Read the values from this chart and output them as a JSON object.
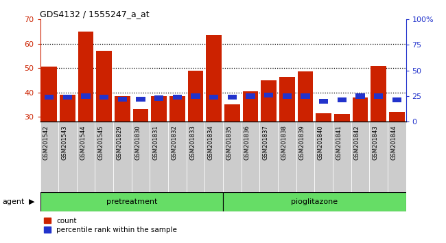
{
  "title": "GDS4132 / 1555247_a_at",
  "samples": [
    "GSM201542",
    "GSM201543",
    "GSM201544",
    "GSM201545",
    "GSM201829",
    "GSM201830",
    "GSM201831",
    "GSM201832",
    "GSM201833",
    "GSM201834",
    "GSM201835",
    "GSM201836",
    "GSM201837",
    "GSM201838",
    "GSM201839",
    "GSM201840",
    "GSM201841",
    "GSM201842",
    "GSM201843",
    "GSM201844"
  ],
  "count_values": [
    50.5,
    39.0,
    65.0,
    57.0,
    38.5,
    33.0,
    38.5,
    38.5,
    49.0,
    63.5,
    35.0,
    40.5,
    45.0,
    46.5,
    48.5,
    31.5,
    31.0,
    38.0,
    51.0,
    32.0
  ],
  "percentile_values": [
    24,
    24,
    25,
    24,
    22,
    22,
    23,
    24,
    25,
    24,
    24,
    25,
    26,
    25,
    25,
    20,
    21,
    25,
    25,
    21
  ],
  "bar_color_count": "#cc2200",
  "bar_color_pct": "#2233cc",
  "ylim_left": [
    28,
    70
  ],
  "ylim_right": [
    0,
    100
  ],
  "yticks_left": [
    30,
    40,
    50,
    60,
    70
  ],
  "yticks_right": [
    0,
    25,
    50,
    75,
    100
  ],
  "yticklabels_right": [
    "0",
    "25",
    "50",
    "75",
    "100%"
  ],
  "group_divider": 10,
  "group_color": "#66dd66",
  "tick_bg_color": "#cccccc",
  "legend_count": "count",
  "legend_pct": "percentile rank within the sample",
  "agent_label": "agent"
}
